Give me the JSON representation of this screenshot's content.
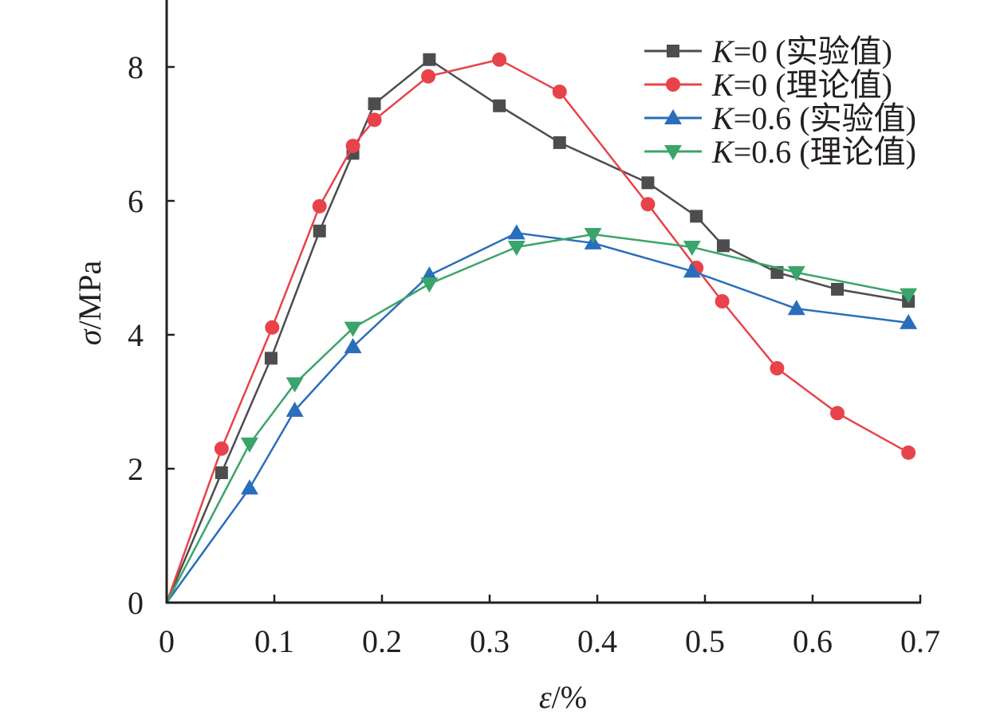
{
  "chart_data": {
    "type": "line",
    "title": "",
    "xlabel": "ε/%",
    "ylabel": "σ/MPa",
    "xlim": [
      0,
      0.7
    ],
    "ylim": [
      0,
      9
    ],
    "xticks": [
      "0",
      "0.1",
      "0.2",
      "0.3",
      "0.4",
      "0.5",
      "0.6",
      "0.7"
    ],
    "xtick_values": [
      0,
      0.1,
      0.2,
      0.3,
      0.4,
      0.5,
      0.6,
      0.7
    ],
    "yticks": [
      "0",
      "2",
      "4",
      "6",
      "8"
    ],
    "ytick_values": [
      0,
      2,
      4,
      6,
      8
    ],
    "grid": false,
    "legend_position": "top-right",
    "series": [
      {
        "name": "K=0 (实验值)",
        "legend_k": "K",
        "legend_rest": "=0 (实验值)",
        "color": "#4d4d4f",
        "marker": "square",
        "x": [
          0,
          0.051,
          0.097,
          0.142,
          0.173,
          0.193,
          0.244,
          0.309,
          0.365,
          0.447,
          0.492,
          0.517,
          0.567,
          0.623,
          0.689
        ],
        "y": [
          0,
          1.94,
          3.65,
          5.55,
          6.71,
          7.45,
          8.11,
          7.42,
          6.87,
          6.27,
          5.77,
          5.33,
          4.93,
          4.68,
          4.5
        ]
      },
      {
        "name": "K=0 (理论值)",
        "legend_k": "K",
        "legend_rest": "=0 (理论值)",
        "color": "#e8434a",
        "marker": "circle",
        "x": [
          0,
          0.051,
          0.098,
          0.142,
          0.173,
          0.193,
          0.243,
          0.309,
          0.365,
          0.447,
          0.492,
          0.516,
          0.567,
          0.623,
          0.689
        ],
        "y": [
          0,
          2.3,
          4.11,
          5.92,
          6.82,
          7.21,
          7.86,
          8.11,
          7.63,
          5.95,
          5.0,
          4.5,
          3.5,
          2.83,
          2.24
        ]
      },
      {
        "name": "K=0.6 (实验值)",
        "legend_k": "K",
        "legend_rest": "=0.6 (实验值)",
        "color": "#2a6ebb",
        "marker": "triangle-up",
        "x": [
          0,
          0.077,
          0.119,
          0.173,
          0.244,
          0.325,
          0.396,
          0.488,
          0.585,
          0.689
        ],
        "y": [
          0,
          1.71,
          2.87,
          3.82,
          4.89,
          5.52,
          5.37,
          4.95,
          4.39,
          4.18
        ]
      },
      {
        "name": "K=0.6 (理论值)",
        "legend_k": "K",
        "legend_rest": "=0.6 (理论值)",
        "color": "#3aa46a",
        "marker": "triangle-down",
        "x": [
          0,
          0.077,
          0.119,
          0.173,
          0.244,
          0.325,
          0.396,
          0.488,
          0.585,
          0.689
        ],
        "y": [
          0,
          2.37,
          3.27,
          4.1,
          4.76,
          5.31,
          5.5,
          5.31,
          4.93,
          4.6
        ]
      }
    ]
  }
}
